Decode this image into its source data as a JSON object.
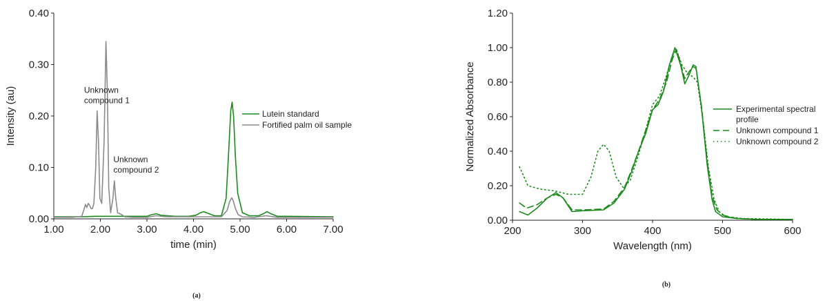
{
  "colors": {
    "green": "#1a8a1a",
    "gray": "#8a8a8a",
    "axis": "#222222"
  },
  "chart_data": [
    {
      "type": "line",
      "panel_label": "(a)",
      "xlabel": "time (min)",
      "ylabel": "Intensity (au)",
      "xlim": [
        1.0,
        7.0
      ],
      "ylim": [
        0.0,
        0.4
      ],
      "x_ticks": [
        "1.00",
        "2.00",
        "3.00",
        "4.00",
        "5.00",
        "6.00",
        "7.00"
      ],
      "y_ticks": [
        "0.00",
        "0.10",
        "0.20",
        "0.30",
        "0.40"
      ],
      "legend_position": "right",
      "series": [
        {
          "name": "Lutein standard",
          "color": "#1a8a1a",
          "style": "solid",
          "x": [
            1.0,
            1.6,
            1.9,
            2.1,
            2.3,
            2.6,
            3.0,
            3.1,
            3.2,
            3.3,
            3.6,
            3.9,
            4.05,
            4.15,
            4.22,
            4.3,
            4.45,
            4.6,
            4.7,
            4.75,
            4.8,
            4.83,
            4.86,
            4.9,
            4.95,
            5.05,
            5.2,
            5.4,
            5.5,
            5.58,
            5.66,
            5.8,
            6.0,
            7.0
          ],
          "y": [
            0.004,
            0.004,
            0.005,
            0.005,
            0.005,
            0.005,
            0.005,
            0.008,
            0.01,
            0.007,
            0.005,
            0.005,
            0.007,
            0.012,
            0.014,
            0.011,
            0.006,
            0.006,
            0.04,
            0.12,
            0.21,
            0.227,
            0.2,
            0.12,
            0.05,
            0.012,
            0.006,
            0.006,
            0.01,
            0.014,
            0.01,
            0.005,
            0.005,
            0.004
          ]
        },
        {
          "name": "Fortified palm oil sample",
          "color": "#8a8a8a",
          "style": "solid",
          "x": [
            1.0,
            1.4,
            1.6,
            1.64,
            1.68,
            1.71,
            1.74,
            1.77,
            1.8,
            1.83,
            1.86,
            1.9,
            1.93,
            1.96,
            1.99,
            2.03,
            2.08,
            2.12,
            2.15,
            2.18,
            2.22,
            2.27,
            2.3,
            2.33,
            2.37,
            2.42,
            2.46,
            2.52,
            2.7,
            3.0,
            3.2,
            3.4,
            4.2,
            4.6,
            4.72,
            4.78,
            4.82,
            4.85,
            4.9,
            4.96,
            5.05,
            5.3,
            5.56,
            5.8,
            7.0
          ],
          "y": [
            0.003,
            0.003,
            0.005,
            0.016,
            0.028,
            0.022,
            0.03,
            0.026,
            0.02,
            0.02,
            0.03,
            0.1,
            0.21,
            0.15,
            0.04,
            0.03,
            0.15,
            0.345,
            0.25,
            0.06,
            0.012,
            0.04,
            0.074,
            0.04,
            0.012,
            0.01,
            0.008,
            0.004,
            0.003,
            0.003,
            0.006,
            0.004,
            0.004,
            0.004,
            0.016,
            0.034,
            0.041,
            0.036,
            0.02,
            0.008,
            0.004,
            0.003,
            0.006,
            0.003,
            0.003
          ]
        }
      ],
      "annotations": [
        {
          "lines": [
            "Unknown",
            "compound 1"
          ],
          "x": 1.65,
          "y": 0.245
        },
        {
          "lines": [
            "Unknown",
            "compound 2"
          ],
          "x": 2.28,
          "y": 0.11
        }
      ]
    },
    {
      "type": "line",
      "panel_label": "(b)",
      "xlabel": "Wavelength (nm)",
      "ylabel": "Normalized Absorbance",
      "xlim": [
        200,
        600
      ],
      "ylim": [
        0.0,
        1.2
      ],
      "x_ticks": [
        "200",
        "300",
        "400",
        "500",
        "600"
      ],
      "y_ticks": [
        "0.00",
        "0.20",
        "0.40",
        "0.60",
        "0.80",
        "1.00",
        "1.20"
      ],
      "legend_position": "right",
      "series": [
        {
          "name": "Experimental spectral profile",
          "color": "#1a8a1a",
          "style": "solid",
          "x": [
            210,
            222,
            235,
            250,
            262,
            272,
            285,
            300,
            330,
            345,
            360,
            370,
            380,
            390,
            400,
            408,
            416,
            424,
            432,
            440,
            446,
            452,
            458,
            462,
            470,
            478,
            485,
            490,
            500,
            520,
            550,
            600
          ],
          "y": [
            0.05,
            0.03,
            0.07,
            0.13,
            0.16,
            0.13,
            0.05,
            0.055,
            0.06,
            0.1,
            0.18,
            0.28,
            0.4,
            0.5,
            0.64,
            0.67,
            0.75,
            0.9,
            1.0,
            0.9,
            0.79,
            0.84,
            0.9,
            0.89,
            0.65,
            0.32,
            0.12,
            0.05,
            0.02,
            0.01,
            0.005,
            0.005
          ]
        },
        {
          "name": "Unknown compound 1",
          "color": "#1a8a1a",
          "style": "dashed",
          "x": [
            210,
            220,
            235,
            250,
            262,
            272,
            285,
            300,
            330,
            345,
            360,
            370,
            380,
            390,
            400,
            410,
            420,
            428,
            434,
            440,
            446,
            452,
            458,
            462,
            470,
            478,
            485,
            492,
            500,
            520,
            550,
            600
          ],
          "y": [
            0.1,
            0.07,
            0.09,
            0.13,
            0.15,
            0.13,
            0.06,
            0.06,
            0.065,
            0.11,
            0.19,
            0.29,
            0.4,
            0.52,
            0.64,
            0.7,
            0.8,
            0.93,
            0.99,
            0.91,
            0.82,
            0.86,
            0.89,
            0.88,
            0.66,
            0.34,
            0.14,
            0.06,
            0.03,
            0.01,
            0.005,
            0.005
          ]
        },
        {
          "name": "Unknown compound 2",
          "color": "#1a8a1a",
          "style": "dotted",
          "x": [
            210,
            222,
            240,
            260,
            280,
            300,
            312,
            322,
            330,
            338,
            348,
            358,
            368,
            380,
            390,
            400,
            410,
            420,
            428,
            434,
            442,
            450,
            458,
            464,
            472,
            480,
            488,
            495,
            505,
            530,
            600
          ],
          "y": [
            0.31,
            0.2,
            0.18,
            0.17,
            0.15,
            0.15,
            0.25,
            0.4,
            0.44,
            0.4,
            0.25,
            0.19,
            0.23,
            0.38,
            0.52,
            0.67,
            0.72,
            0.84,
            0.95,
            0.99,
            0.9,
            0.85,
            0.83,
            0.8,
            0.58,
            0.3,
            0.12,
            0.05,
            0.02,
            0.01,
            0.005
          ]
        }
      ]
    }
  ]
}
